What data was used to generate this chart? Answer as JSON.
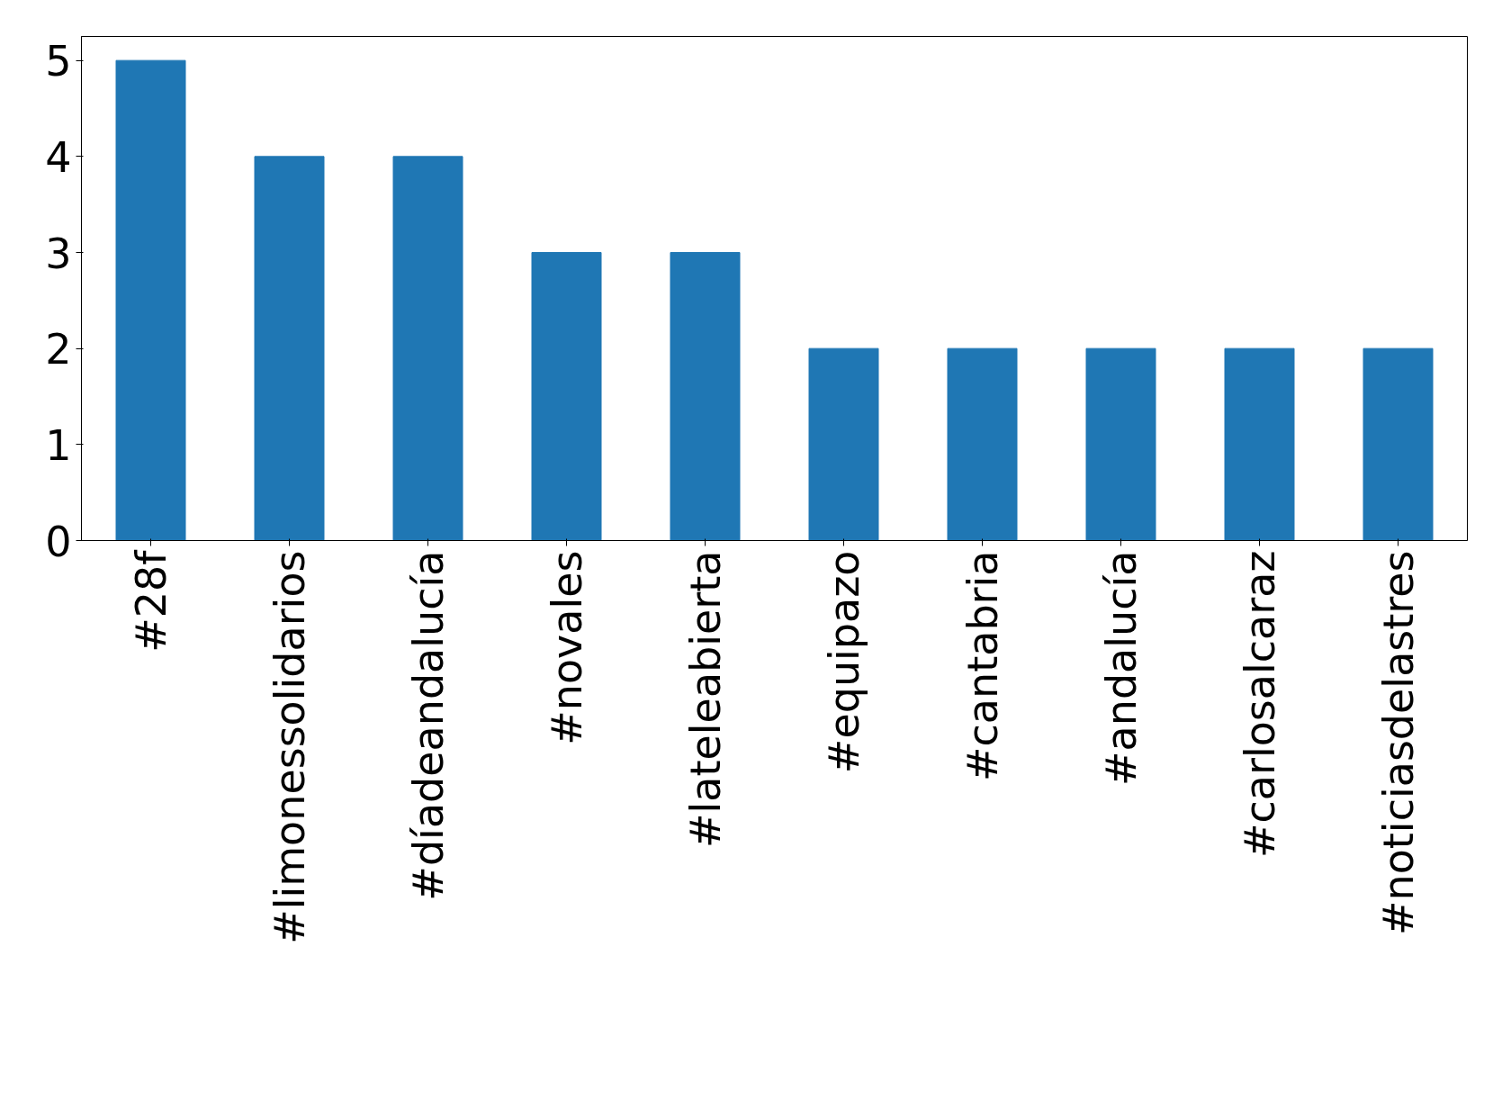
{
  "chart_data": {
    "type": "bar",
    "categories": [
      "#28f",
      "#limonessolidarios",
      "#díadeandalucía",
      "#novales",
      "#lateleabierta",
      "#equipazo",
      "#cantabria",
      "#andalucía",
      "#carlosalcaraz",
      "#noticiasdelastres"
    ],
    "values": [
      5,
      4,
      4,
      3,
      3,
      2,
      2,
      2,
      2,
      2
    ],
    "color": "#1f77b4",
    "ylim": [
      0,
      5.25
    ],
    "yticks": [
      0,
      1,
      2,
      3,
      4,
      5
    ],
    "grid": false
  }
}
